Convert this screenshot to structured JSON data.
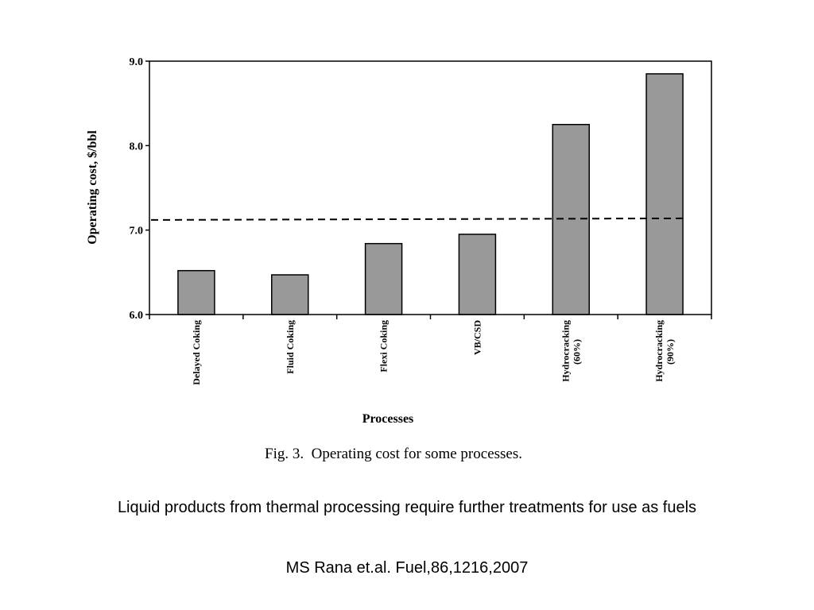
{
  "chart_data": {
    "type": "bar",
    "categories": [
      [
        "Delayed Coking"
      ],
      [
        "Fluid Coking"
      ],
      [
        "Flexi Coking"
      ],
      [
        "VB/CSD"
      ],
      [
        "Hydrocracking",
        "(60%)"
      ],
      [
        "Hydrocracking",
        "(90%)"
      ]
    ],
    "values": [
      6.52,
      6.47,
      6.84,
      6.95,
      8.25,
      8.85
    ],
    "reference_line": 7.12,
    "ylim": [
      6.0,
      9.0
    ],
    "yticks": [
      "6.0",
      "7.0",
      "8.0",
      "9.0"
    ],
    "xlabel": "Processes",
    "ylabel": "Operating cost, $/bbl",
    "caption": "Fig. 3.  Operating cost for some processes.",
    "bar_color": "#999999",
    "grid": false
  },
  "slide": {
    "subtitle": "Liquid products from thermal processing require further treatments for use as fuels",
    "citation": "MS Rana et.al. Fuel,86,1216,2007"
  }
}
